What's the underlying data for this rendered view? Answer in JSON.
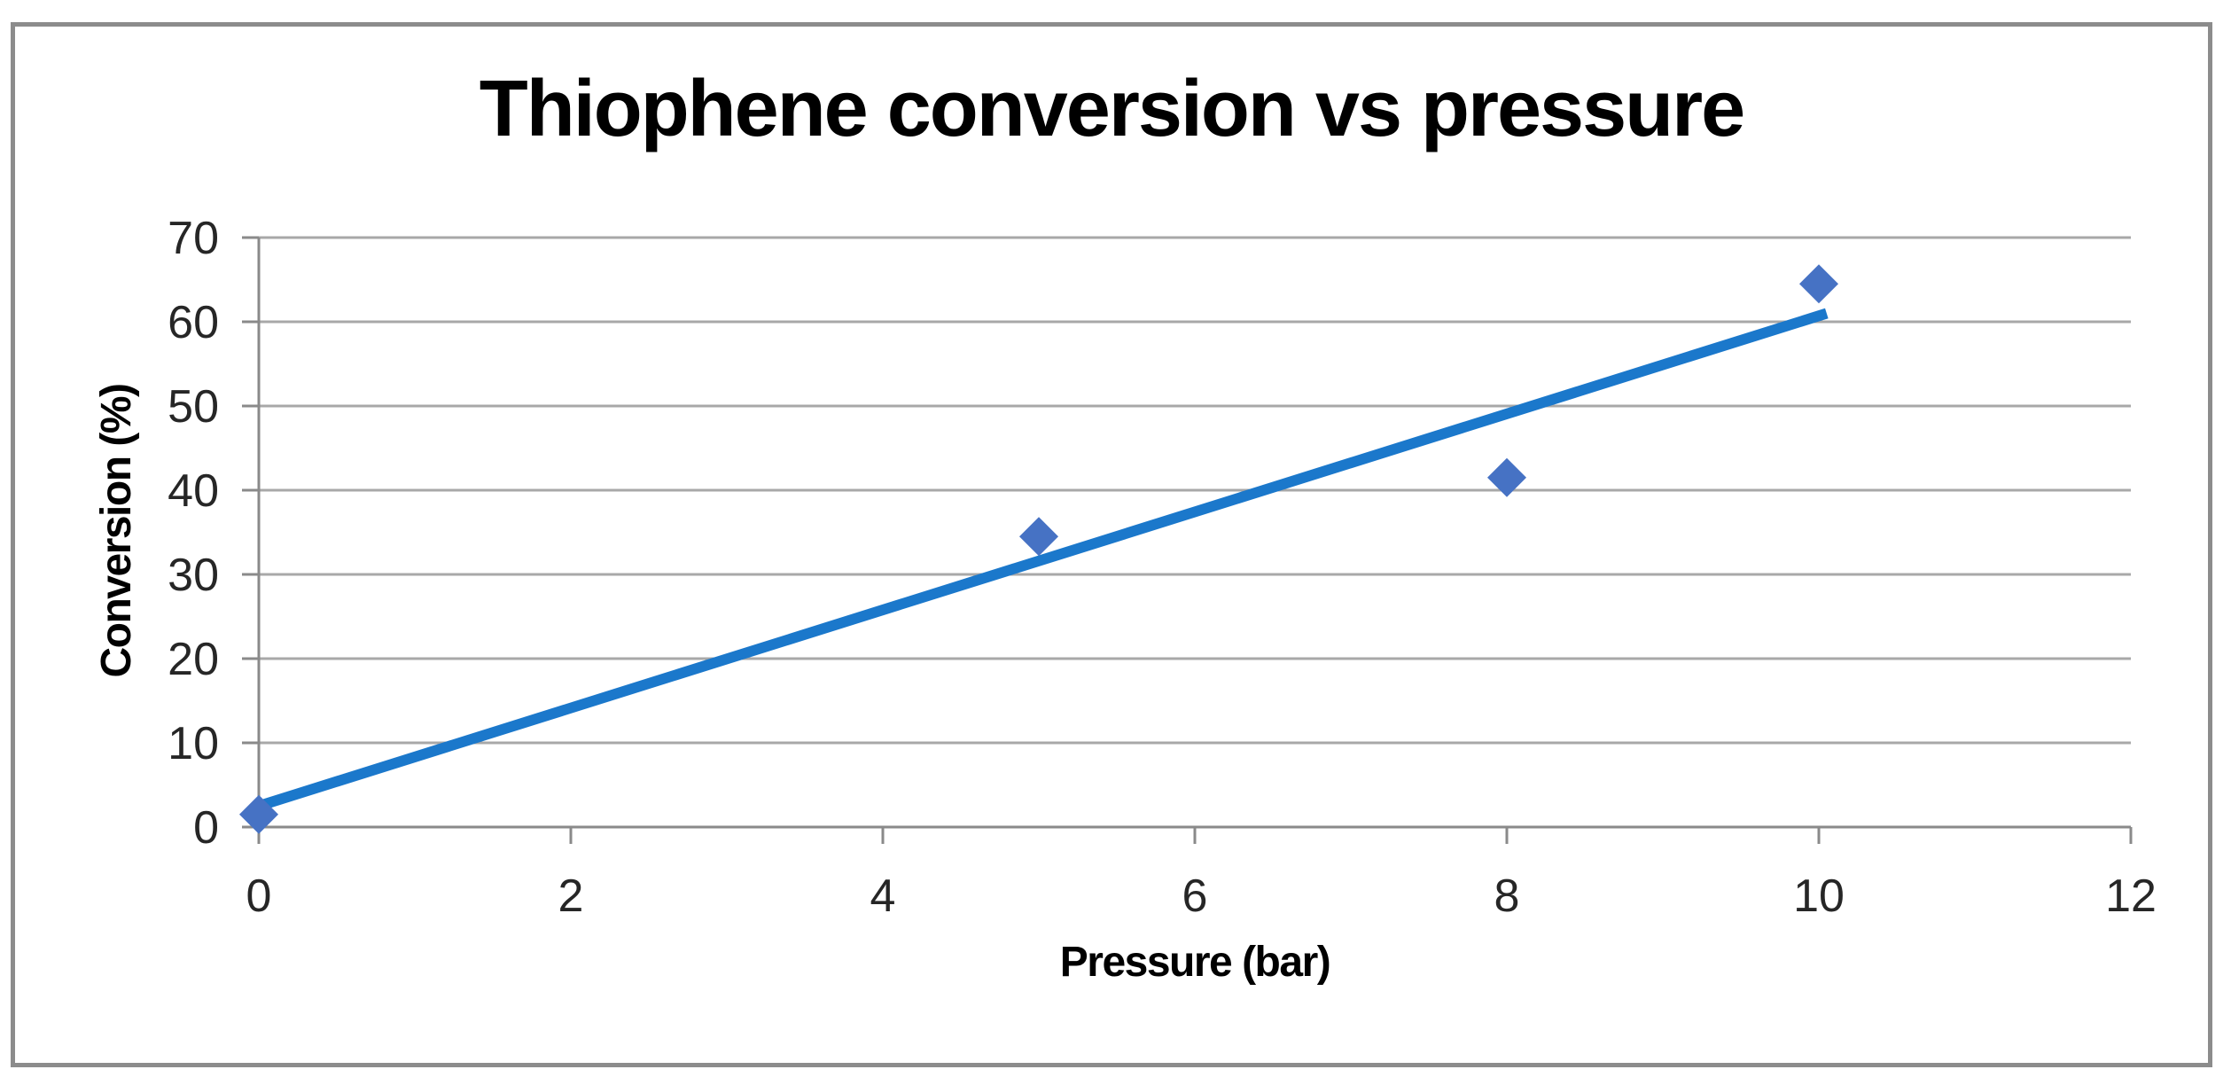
{
  "chart_data": {
    "type": "scatter",
    "title": "Thiophene conversion vs pressure",
    "xlabel": "Pressure (bar)",
    "ylabel": "Conversion (%)",
    "xlim": [
      0,
      12
    ],
    "ylim": [
      0,
      70
    ],
    "x_ticks": [
      0,
      2,
      4,
      6,
      8,
      10,
      12
    ],
    "y_ticks": [
      0,
      10,
      20,
      30,
      40,
      50,
      60,
      70
    ],
    "grid": true,
    "legend": false,
    "points": [
      {
        "x": 0,
        "y": 1.5
      },
      {
        "x": 5,
        "y": 34.5
      },
      {
        "x": 8,
        "y": 41.5
      },
      {
        "x": 10,
        "y": 64.5
      }
    ],
    "trendline": {
      "x1": 0,
      "y1": 2.5,
      "x2": 10.05,
      "y2": 61
    },
    "colors": {
      "marker": "#4672C4",
      "trendline": "#1B78CB",
      "gridline": "#A8A8A8",
      "axis": "#8A8A8A",
      "tick_text": "#262626",
      "title_text": "#000000",
      "frame_border": "#8C8C8C",
      "background": "#FFFFFF"
    }
  }
}
